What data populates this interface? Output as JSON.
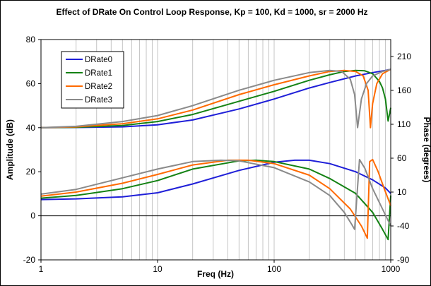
{
  "chart_data": {
    "type": "line",
    "title": "Effect of DRate On Control Loop Response, Kp = 100, Kd = 1000, sr = 2000 Hz",
    "xlabel": "Freq (Hz)",
    "ylabel": "Amplitude (dB)",
    "y2label": "Phase (degrees)",
    "xscale": "log",
    "xlim": [
      1,
      1000
    ],
    "ylim": [
      -20,
      80
    ],
    "y2lim": [
      -90,
      235
    ],
    "x_ticks": [
      "1",
      "10",
      "100",
      "1000"
    ],
    "y_ticks": [
      "80",
      "60",
      "40",
      "20",
      "0",
      "-20"
    ],
    "y2_ticks": [
      "210",
      "160",
      "110",
      "60",
      "10",
      "-40",
      "-90"
    ],
    "grid": "vertical minor log gridlines",
    "legend": {
      "position": "top-left",
      "entries": [
        "DRate0",
        "DRate1",
        "DRate2",
        "DRate3"
      ]
    },
    "colors": {
      "DRate0": "#1f1fd8",
      "DRate1": "#148214",
      "DRate2": "#ff6a00",
      "DRate3": "#8a8a8a"
    },
    "amplitude_series": [
      {
        "name": "DRate0",
        "axis": "left",
        "x": [
          1,
          2,
          5,
          10,
          20,
          50,
          100,
          200,
          300,
          500,
          700,
          900,
          1000
        ],
        "y": [
          40,
          40.1,
          40.4,
          41.3,
          43.5,
          48.5,
          53,
          58,
          60.5,
          63.5,
          65,
          66,
          66.5
        ]
      },
      {
        "name": "DRate1",
        "axis": "left",
        "x": [
          1,
          2,
          5,
          10,
          20,
          50,
          100,
          200,
          300,
          400,
          500,
          600,
          700,
          800,
          850,
          900,
          950,
          1000
        ],
        "y": [
          40,
          40.2,
          41,
          42.8,
          46,
          52,
          56.5,
          61.5,
          64,
          65.5,
          66,
          65.8,
          64.5,
          61,
          58,
          53,
          43,
          49
        ]
      },
      {
        "name": "DRate2",
        "axis": "left",
        "x": [
          1,
          2,
          5,
          10,
          20,
          50,
          100,
          200,
          300,
          400,
          500,
          580,
          640,
          670,
          700,
          760,
          850,
          1000
        ],
        "y": [
          40,
          40.4,
          41.8,
          44,
          48,
          55,
          59.5,
          63.5,
          65.5,
          66,
          65.5,
          63.5,
          57,
          40,
          51,
          60,
          64.5,
          66.5
        ]
      },
      {
        "name": "DRate3",
        "axis": "left",
        "x": [
          1,
          2,
          5,
          10,
          20,
          50,
          100,
          200,
          300,
          380,
          450,
          490,
          520,
          560,
          620,
          700,
          850,
          1000
        ],
        "y": [
          40,
          40.6,
          42.8,
          45.5,
          50,
          57,
          61.5,
          65,
          66,
          65.5,
          62,
          55,
          40,
          53,
          60,
          63.5,
          65.5,
          66.5
        ]
      }
    ],
    "phase_series": [
      {
        "name": "DRate0",
        "axis": "right",
        "x": [
          1,
          2,
          5,
          10,
          20,
          50,
          100,
          150,
          200,
          300,
          500,
          700,
          900,
          1000
        ],
        "y": [
          -1,
          0,
          3,
          9,
          22,
          42,
          54,
          57,
          57,
          52,
          40,
          28,
          16,
          8
        ]
      },
      {
        "name": "DRate1",
        "axis": "right",
        "x": [
          1,
          2,
          5,
          10,
          20,
          50,
          70,
          100,
          200,
          300,
          500,
          700,
          850,
          950,
          1000
        ],
        "y": [
          1,
          5,
          15,
          27,
          44,
          56,
          57,
          55,
          44,
          30,
          8,
          -20,
          -45,
          -60,
          5
        ]
      },
      {
        "name": "DRate2",
        "axis": "right",
        "x": [
          1,
          2,
          5,
          10,
          20,
          40,
          60,
          100,
          200,
          300,
          450,
          560,
          630,
          660,
          700,
          780,
          880,
          1000
        ],
        "y": [
          4,
          10,
          23,
          36,
          50,
          57,
          57,
          52,
          35,
          15,
          -15,
          -40,
          -58,
          55,
          58,
          40,
          15,
          -10
        ]
      },
      {
        "name": "DRate3",
        "axis": "right",
        "x": [
          1,
          2,
          5,
          10,
          20,
          35,
          50,
          100,
          200,
          300,
          400,
          460,
          490,
          540,
          600,
          700,
          850,
          1000
        ],
        "y": [
          7,
          14,
          31,
          44,
          55,
          57,
          56,
          46,
          25,
          5,
          -20,
          -37,
          -45,
          58,
          45,
          15,
          -15,
          -40
        ]
      }
    ]
  }
}
